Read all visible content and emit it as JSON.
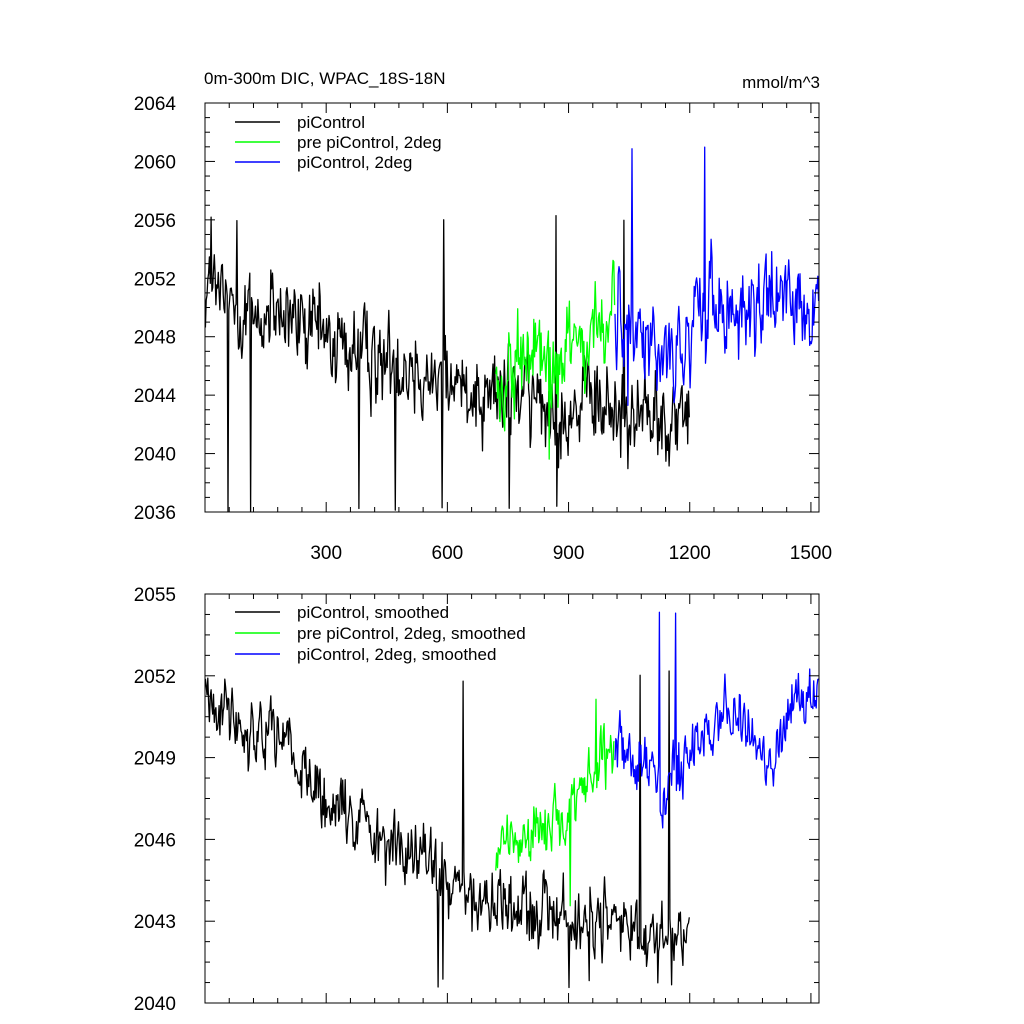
{
  "chart_data": [
    {
      "type": "line",
      "title": "0m-300m DIC, WPAC_18S-18N",
      "units_label": "mmol/m^3",
      "xlim": [
        0,
        1520
      ],
      "ylim": [
        2036,
        2064
      ],
      "x_ticks": [
        300,
        600,
        900,
        1200,
        1500
      ],
      "x_tick_labels": [
        "300",
        "600",
        "900",
        "1200",
        "1500"
      ],
      "y_ticks": [
        2036,
        2040,
        2044,
        2048,
        2052,
        2056,
        2060,
        2064
      ],
      "y_tick_labels": [
        "2036",
        "2040",
        "2044",
        "2048",
        "2052",
        "2056",
        "2060",
        "2064"
      ],
      "grid": false,
      "legend": "top-left",
      "series": [
        {
          "name": "piControl",
          "color": "#000000",
          "x_range": [
            1,
            1200
          ],
          "knots": [
            [
              1,
              2051.5
            ],
            [
              100,
              2049.5
            ],
            [
              200,
              2049.0
            ],
            [
              300,
              2048.0
            ],
            [
              400,
              2046.5
            ],
            [
              500,
              2046.0
            ],
            [
              600,
              2045.0
            ],
            [
              700,
              2044.5
            ],
            [
              800,
              2043.8
            ],
            [
              900,
              2043.2
            ],
            [
              1000,
              2043.0
            ],
            [
              1100,
              2042.6
            ],
            [
              1200,
              2042.3
            ]
          ],
          "noise": 2.4,
          "min": 2036.0,
          "max": 2056.3
        },
        {
          "name": "pre piControl, 2deg",
          "color": "#00ff00",
          "x_range": [
            720,
            1015
          ],
          "knots": [
            [
              720,
              2045.0
            ],
            [
              800,
              2046.0
            ],
            [
              900,
              2047.0
            ],
            [
              1015,
              2048.5
            ]
          ],
          "noise": 2.6,
          "min": 2039.5,
          "max": 2059.5
        },
        {
          "name": "piControl, 2deg",
          "color": "#0000ff",
          "x_range": [
            1015,
            1520
          ],
          "knots": [
            [
              1015,
              2049.0
            ],
            [
              1100,
              2048.0
            ],
            [
              1180,
              2046.5
            ],
            [
              1220,
              2049.5
            ],
            [
              1350,
              2050.0
            ],
            [
              1450,
              2050.5
            ],
            [
              1520,
              2050.5
            ]
          ],
          "noise": 2.4,
          "min": 2043.0,
          "max": 2061.0
        }
      ]
    },
    {
      "type": "line",
      "xlim": [
        0,
        1520
      ],
      "ylim": [
        2040,
        2055
      ],
      "x_ticks": [
        300,
        600,
        900,
        1200,
        1500
      ],
      "y_ticks": [
        2040,
        2043,
        2046,
        2049,
        2052,
        2055
      ],
      "y_tick_labels": [
        "2040",
        "2043",
        "2046",
        "2049",
        "2052",
        "2055"
      ],
      "grid": false,
      "legend": "top-left",
      "series": [
        {
          "name": "piControl, smoothed",
          "color": "#000000",
          "x_range": [
            1,
            1200
          ],
          "knots": [
            [
              1,
              2051.5
            ],
            [
              100,
              2050.0
            ],
            [
              200,
              2050.0
            ],
            [
              240,
              2048.5
            ],
            [
              300,
              2047.0
            ],
            [
              400,
              2046.5
            ],
            [
              500,
              2045.5
            ],
            [
              600,
              2044.5
            ],
            [
              700,
              2043.5
            ],
            [
              800,
              2043.3
            ],
            [
              900,
              2043.0
            ],
            [
              1000,
              2043.0
            ],
            [
              1100,
              2042.5
            ],
            [
              1200,
              2042.3
            ]
          ],
          "noise": 0.9,
          "min": 2040.5,
          "max": 2052.2
        },
        {
          "name": "pre piControl, 2deg, smoothed",
          "color": "#00ff00",
          "x_range": [
            720,
            1015
          ],
          "knots": [
            [
              720,
              2045.5
            ],
            [
              800,
              2046.0
            ],
            [
              900,
              2047.0
            ],
            [
              950,
              2048.0
            ],
            [
              1015,
              2049.5
            ]
          ],
          "noise": 0.8,
          "min": 2043.5,
          "max": 2051.2
        },
        {
          "name": "piControl, 2deg, smoothed",
          "color": "#0000ff",
          "x_range": [
            1015,
            1520
          ],
          "knots": [
            [
              1015,
              2049.5
            ],
            [
              1060,
              2049.0
            ],
            [
              1100,
              2048.5
            ],
            [
              1150,
              2048.0
            ],
            [
              1200,
              2049.5
            ],
            [
              1300,
              2050.5
            ],
            [
              1400,
              2049.0
            ],
            [
              1470,
              2051.0
            ],
            [
              1520,
              2051.5
            ]
          ],
          "noise": 0.8,
          "min": 2045.5,
          "max": 2054.5
        }
      ]
    }
  ]
}
